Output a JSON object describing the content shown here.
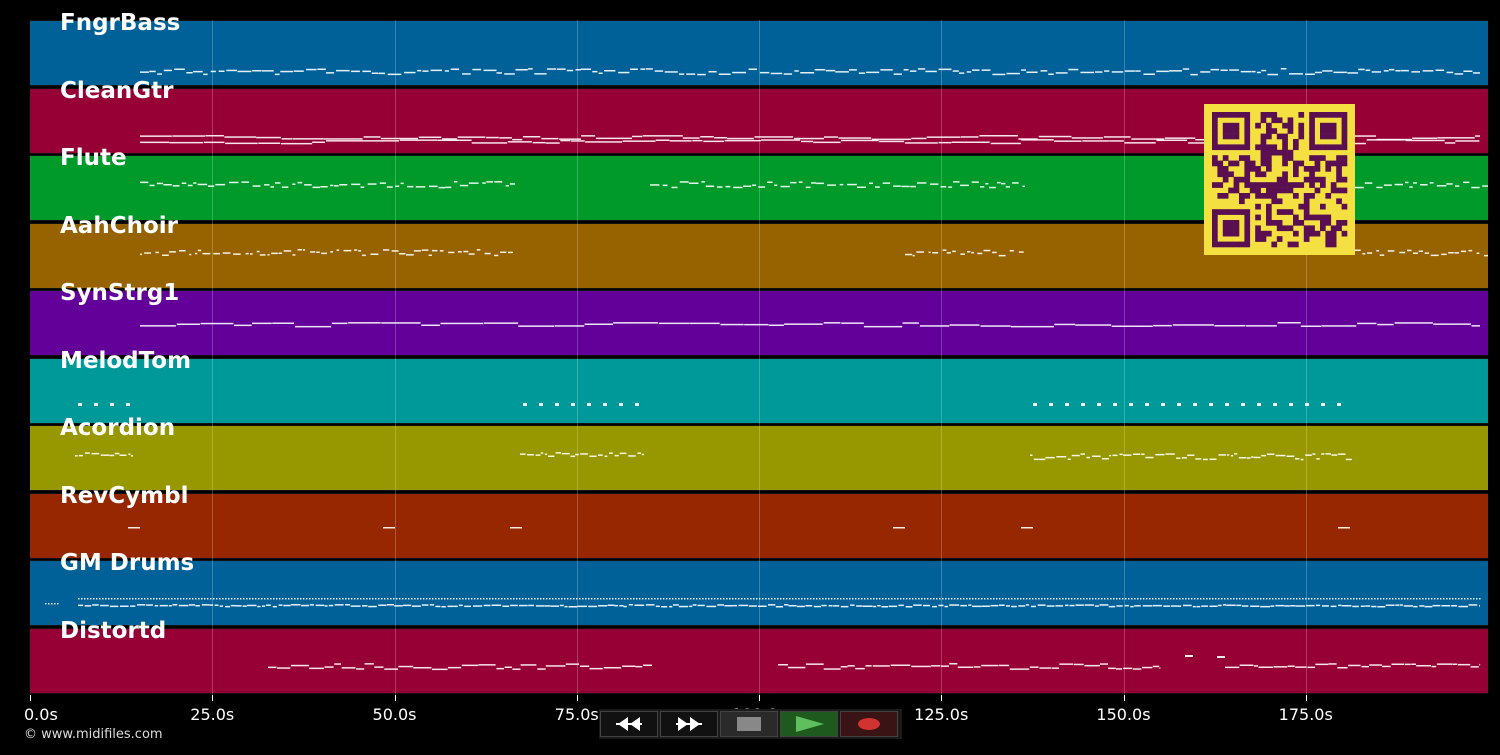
{
  "tracks": [
    {
      "name": "FngrBass",
      "color": "#006199",
      "pattern": "bass"
    },
    {
      "name": "CleanGtr",
      "color": "#970035",
      "pattern": "guitar"
    },
    {
      "name": "Flute",
      "color": "#009a2b",
      "pattern": "flute"
    },
    {
      "name": "AahChoir",
      "color": "#976300",
      "pattern": "choir"
    },
    {
      "name": "SynStrg1",
      "color": "#620099",
      "pattern": "strings"
    },
    {
      "name": "MelodTom",
      "color": "#009999",
      "pattern": "tom"
    },
    {
      "name": "Acordion",
      "color": "#979700",
      "pattern": "accordion"
    },
    {
      "name": "RevCymbl",
      "color": "#972700",
      "pattern": "cymbal"
    },
    {
      "name": "GM Drums",
      "color": "#006199",
      "pattern": "drums"
    },
    {
      "name": "Distortd",
      "color": "#970035",
      "pattern": "distort"
    }
  ],
  "axis": {
    "max_seconds": 200,
    "ticks": [
      {
        "value": 0,
        "label": "0.0s"
      },
      {
        "value": 25,
        "label": "25.0s"
      },
      {
        "value": 50,
        "label": "50.0s"
      },
      {
        "value": 75,
        "label": "75.0s"
      },
      {
        "value": 100,
        "label": "100.0s"
      },
      {
        "value": 125,
        "label": "125.0s"
      },
      {
        "value": 150,
        "label": "150.0s"
      },
      {
        "value": 175,
        "label": "175.0s"
      }
    ]
  },
  "controls": [
    {
      "name": "rewind-button",
      "icon": "rewind-icon",
      "bg": "#111111"
    },
    {
      "name": "fast-forward-button",
      "icon": "fast-forward-icon",
      "bg": "#111111"
    },
    {
      "name": "stop-button",
      "icon": "stop-icon",
      "bg": "#2a2a2a"
    },
    {
      "name": "play-button",
      "icon": "play-icon",
      "bg": "#1e5a1e"
    },
    {
      "name": "record-button",
      "icon": "record-icon",
      "bg": "#3a1414"
    }
  ],
  "copyright": "© www.midifiles.com",
  "qr_color": "#f5e042",
  "qr_dark": "#5a1050"
}
